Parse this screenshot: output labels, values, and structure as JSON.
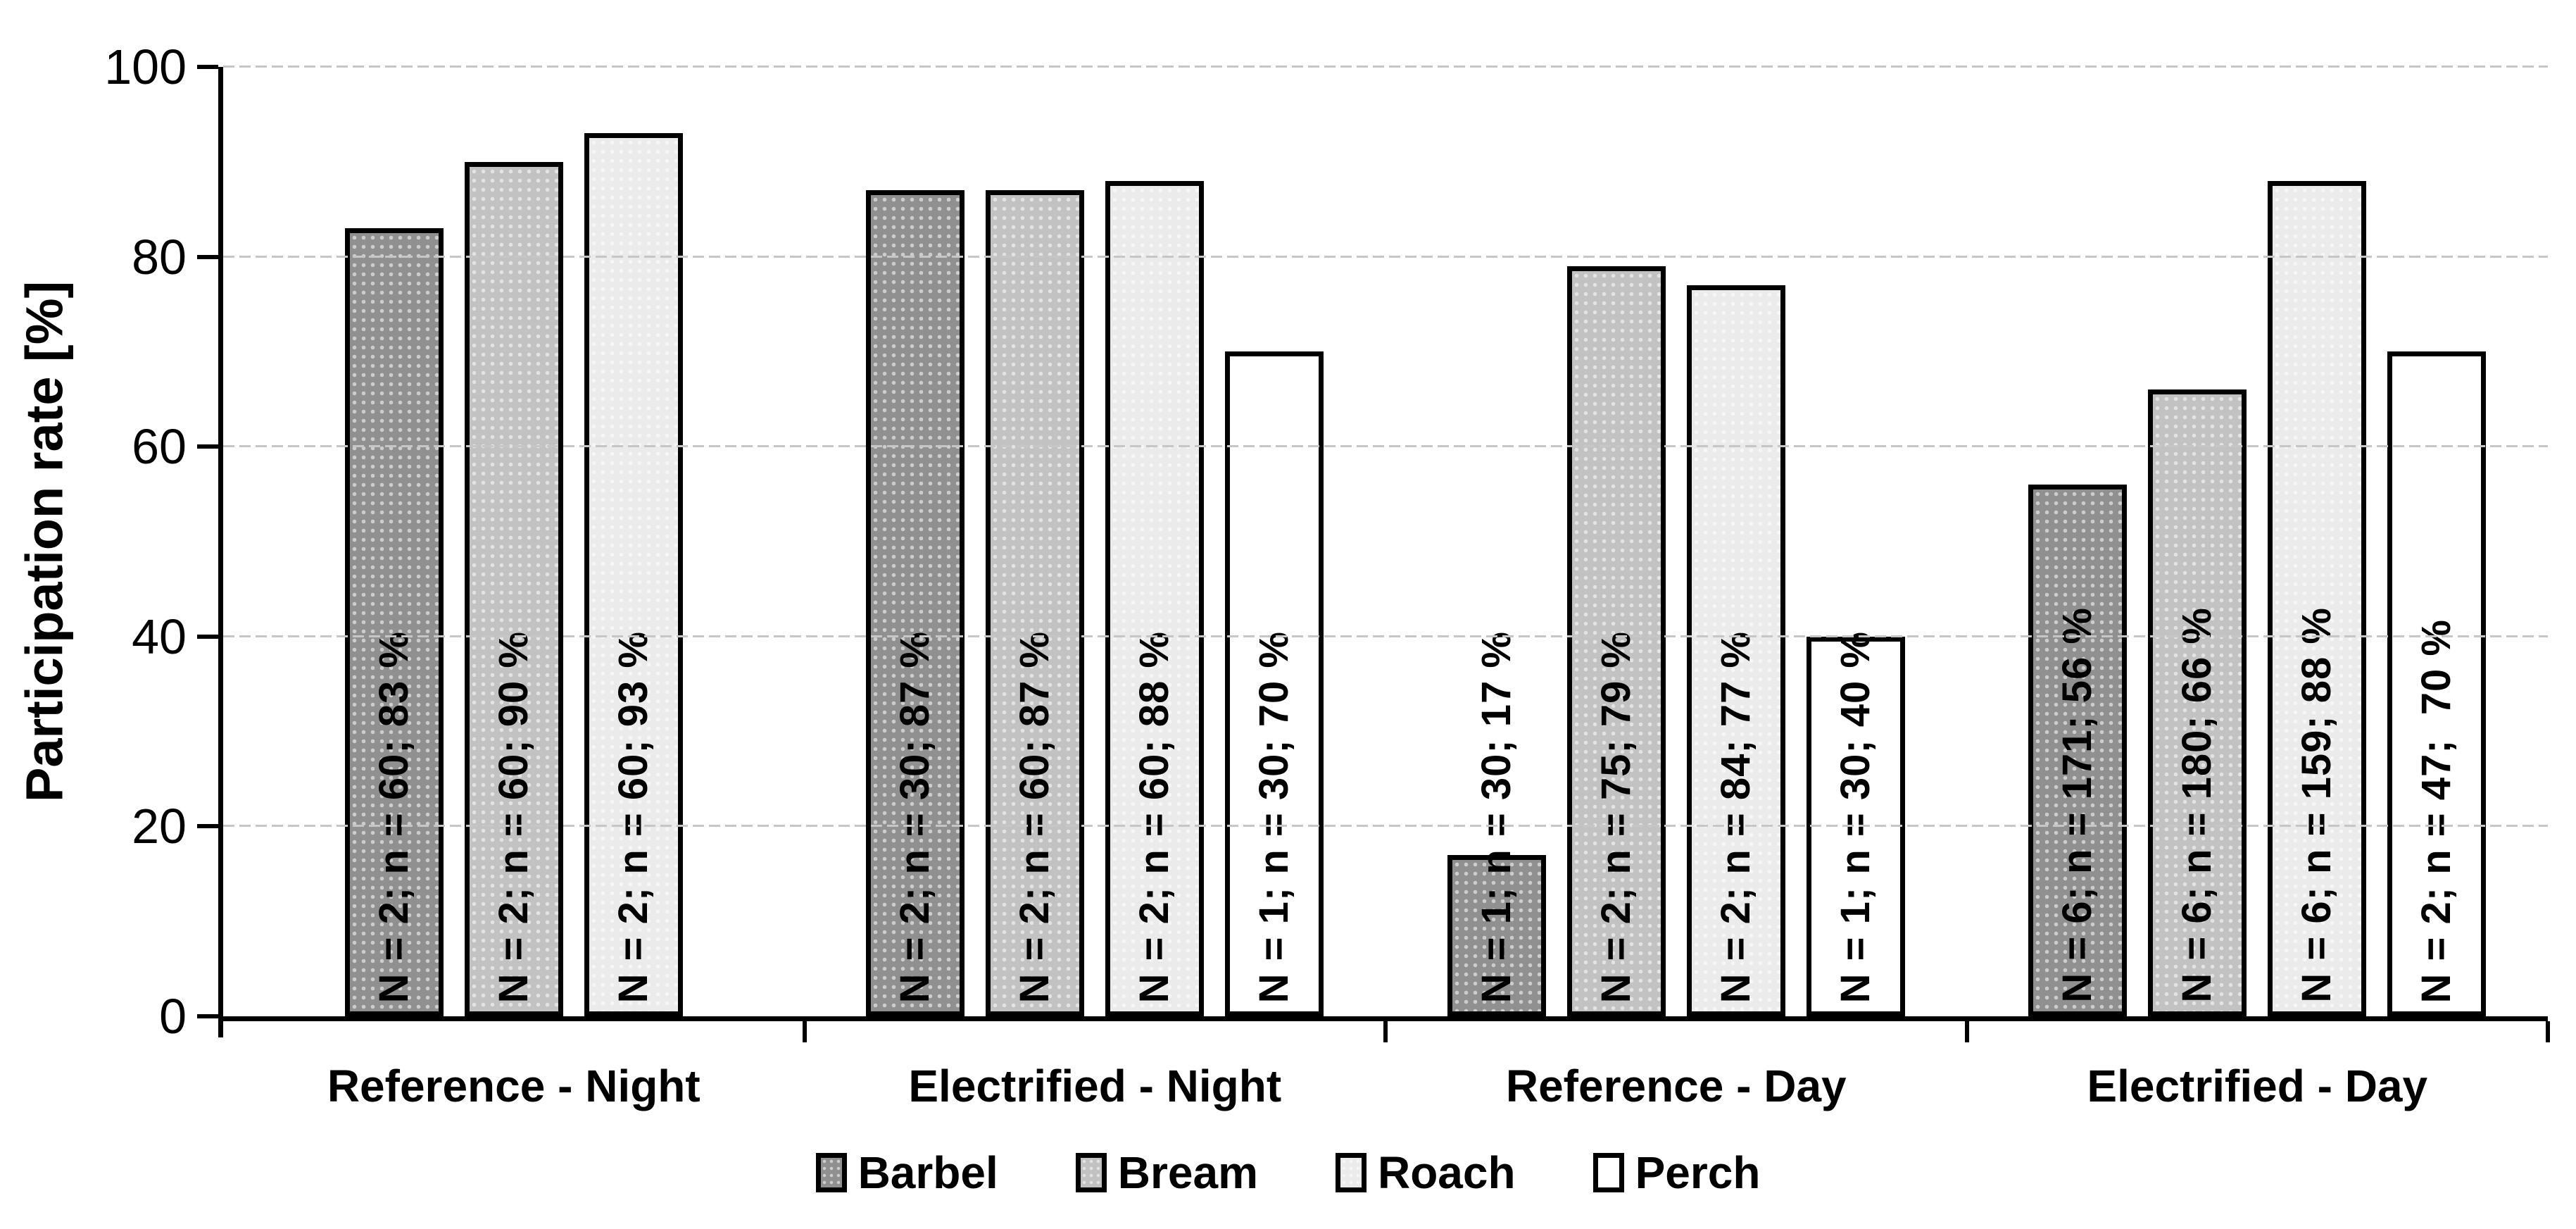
{
  "chart_data": {
    "type": "bar",
    "title": "",
    "ylabel": "Participation rate [%]",
    "ylim": [
      0,
      100
    ],
    "yticks": [
      0,
      20,
      40,
      60,
      80,
      100
    ],
    "grid": "horizontal-dashed",
    "legend_position": "bottom",
    "categories": [
      "Reference - Night",
      "Electrified - Night",
      "Reference - Day",
      "Electrified - Day"
    ],
    "series": [
      {
        "name": "Barbel",
        "color": "#909090",
        "values": [
          83,
          87,
          17,
          56
        ],
        "bar_labels": [
          "N = 2; n = 60; 83 %",
          "N = 2; n = 30; 87 %",
          "N = 1; n = 30; 17 %",
          "N = 6; n = 171; 56 %"
        ]
      },
      {
        "name": "Bream",
        "color": "#c2c2c2",
        "values": [
          90,
          87,
          79,
          66
        ],
        "bar_labels": [
          "N = 2; n = 60; 90 %",
          "N = 2; n = 60; 87 %",
          "N = 2; n = 75; 79 %",
          "N = 6; n = 180; 66 %"
        ]
      },
      {
        "name": "Roach",
        "color": "#ebebeb",
        "values": [
          93,
          88,
          77,
          88
        ],
        "bar_labels": [
          "N = 2; n = 60; 93 %",
          "N = 2; n = 60; 88 %",
          "N = 2; n = 84; 77 %",
          "N = 6; n = 159; 88 %"
        ]
      },
      {
        "name": "Perch",
        "color": "#ffffff",
        "values": [
          null,
          70,
          40,
          70
        ],
        "bar_labels": [
          null,
          "N = 1; n = 30; 70 %",
          "N = 1; n = 30; 40 %",
          "N = 2; n = 47;  70 %"
        ]
      }
    ]
  }
}
